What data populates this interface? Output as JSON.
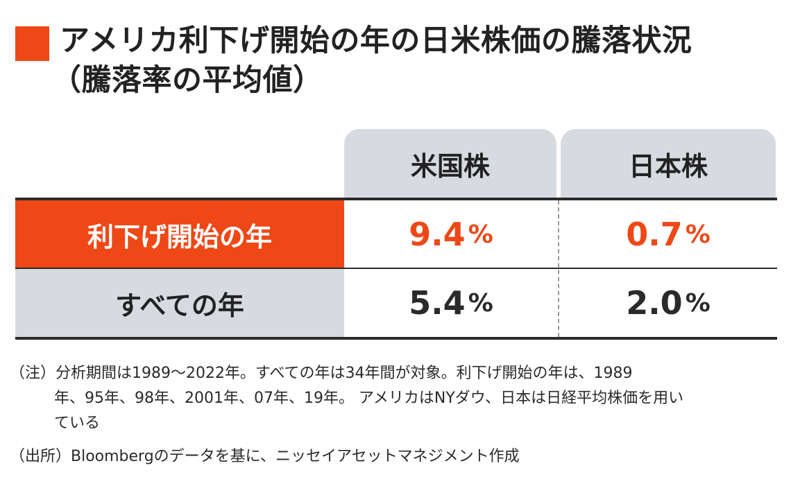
{
  "title": {
    "line1": "アメリカ利下げ開始の年の日米株価の騰落状況",
    "line2": "（騰落率の平均値）"
  },
  "colors": {
    "accent": "#ee4817",
    "header_bg": "#d7dbe1",
    "text": "#222222"
  },
  "chart_data": {
    "type": "table",
    "columns": [
      "米国株",
      "日本株"
    ],
    "rows": [
      {
        "label": "利下げ開始の年",
        "values": [
          "9.4",
          "0.7"
        ],
        "unit": "%",
        "highlight": true
      },
      {
        "label": "すべての年",
        "values": [
          "5.4",
          "2.0"
        ],
        "unit": "%",
        "highlight": false
      }
    ]
  },
  "notes": {
    "line1": "（注）分析期間は1989～2022年。すべての年は34年間が対象。利下げ開始の年は、1989",
    "line2": "年、95年、98年、2001年、07年、19年。 アメリカはNYダウ、日本は日経平均株価を用い",
    "line3": "ている",
    "source": "（出所）Bloombergのデータを基に、ニッセイアセットマネジメント作成"
  }
}
